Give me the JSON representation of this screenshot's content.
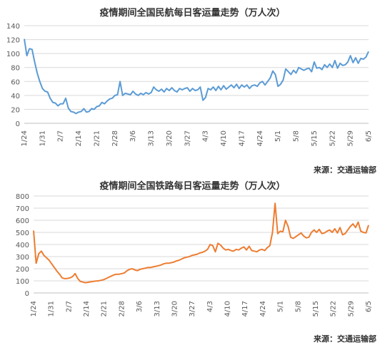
{
  "chart_data": [
    {
      "type": "line",
      "title": "疫情期间全国民航每日客运量走势（万人次）",
      "source": "来源：交通运输部",
      "xlabel": "",
      "ylabel": "",
      "ylim": [
        0,
        140
      ],
      "yticks": [
        "0",
        "20",
        "40",
        "60",
        "80",
        "100",
        "120",
        "140"
      ],
      "xticks": [
        "1/24",
        "1/31",
        "2/7",
        "2/14",
        "2/21",
        "2/28",
        "3/6",
        "3/13",
        "3/20",
        "3/27",
        "4/3",
        "4/10",
        "4/17",
        "4/24",
        "5/1",
        "5/8",
        "5/15",
        "5/22",
        "5/29",
        "6/5"
      ],
      "grid": true,
      "line_color": "#5b9bd5",
      "series": [
        {
          "values": [
            121,
            97,
            107,
            106,
            88,
            72,
            60,
            50,
            46,
            45,
            36,
            30,
            29,
            25,
            28,
            28,
            36,
            22,
            17,
            16,
            14,
            16,
            17,
            21,
            16,
            17,
            21,
            20,
            24,
            25,
            30,
            28,
            32,
            35,
            36,
            40,
            41,
            60,
            40,
            43,
            42,
            41,
            46,
            42,
            40,
            43,
            41,
            44,
            42,
            44,
            52,
            48,
            46,
            49,
            45,
            50,
            47,
            51,
            47,
            45,
            50,
            48,
            50,
            51,
            46,
            50,
            47,
            48,
            52,
            33,
            37,
            50,
            48,
            52,
            47,
            53,
            48,
            54,
            49,
            52,
            55,
            51,
            56,
            50,
            55,
            52,
            55,
            50,
            54,
            55,
            53,
            58,
            60,
            55,
            60,
            65,
            75,
            70,
            53,
            56,
            62,
            78,
            74,
            70,
            76,
            72,
            80,
            78,
            76,
            78,
            79,
            74,
            88,
            79,
            80,
            77,
            84,
            80,
            85,
            80,
            90,
            79,
            86,
            83,
            84,
            88,
            97,
            87,
            94,
            86,
            93,
            92,
            95,
            103
          ]
        }
      ]
    },
    {
      "type": "line",
      "title": "疫情期间全国铁路每日客运量走势（万人次）",
      "source": "来源：交通运输部",
      "xlabel": "",
      "ylabel": "",
      "ylim": [
        0,
        800
      ],
      "yticks": [
        "0",
        "100",
        "200",
        "300",
        "400",
        "500",
        "600",
        "700",
        "800"
      ],
      "xticks": [
        "1/24",
        "1/31",
        "2/7",
        "2/14",
        "2/21",
        "2/28",
        "3/6",
        "3/13",
        "3/20",
        "3/27",
        "4/3",
        "4/10",
        "4/17",
        "4/24",
        "5/1",
        "5/8",
        "5/15",
        "5/22",
        "5/29",
        "6/5"
      ],
      "grid": true,
      "line_color": "#ed7d31",
      "series": [
        {
          "values": [
            515,
            245,
            325,
            345,
            310,
            290,
            270,
            240,
            210,
            180,
            155,
            125,
            118,
            120,
            125,
            135,
            160,
            120,
            95,
            90,
            85,
            88,
            92,
            95,
            98,
            100,
            105,
            110,
            120,
            130,
            140,
            150,
            155,
            155,
            160,
            165,
            185,
            195,
            200,
            190,
            185,
            195,
            200,
            205,
            210,
            210,
            215,
            220,
            225,
            230,
            240,
            245,
            245,
            250,
            255,
            265,
            270,
            280,
            290,
            295,
            300,
            310,
            315,
            320,
            330,
            335,
            345,
            360,
            400,
            390,
            340,
            410,
            395,
            370,
            355,
            360,
            350,
            345,
            360,
            355,
            370,
            380,
            355,
            385,
            350,
            345,
            340,
            355,
            360,
            350,
            375,
            390,
            500,
            740,
            490,
            510,
            505,
            600,
            550,
            460,
            450,
            465,
            480,
            495,
            470,
            455,
            460,
            500,
            520,
            500,
            525,
            490,
            495,
            510,
            520,
            500,
            530,
            495,
            540,
            480,
            490,
            520,
            550,
            570,
            540,
            585,
            510,
            500,
            495,
            560
          ]
        }
      ]
    }
  ]
}
